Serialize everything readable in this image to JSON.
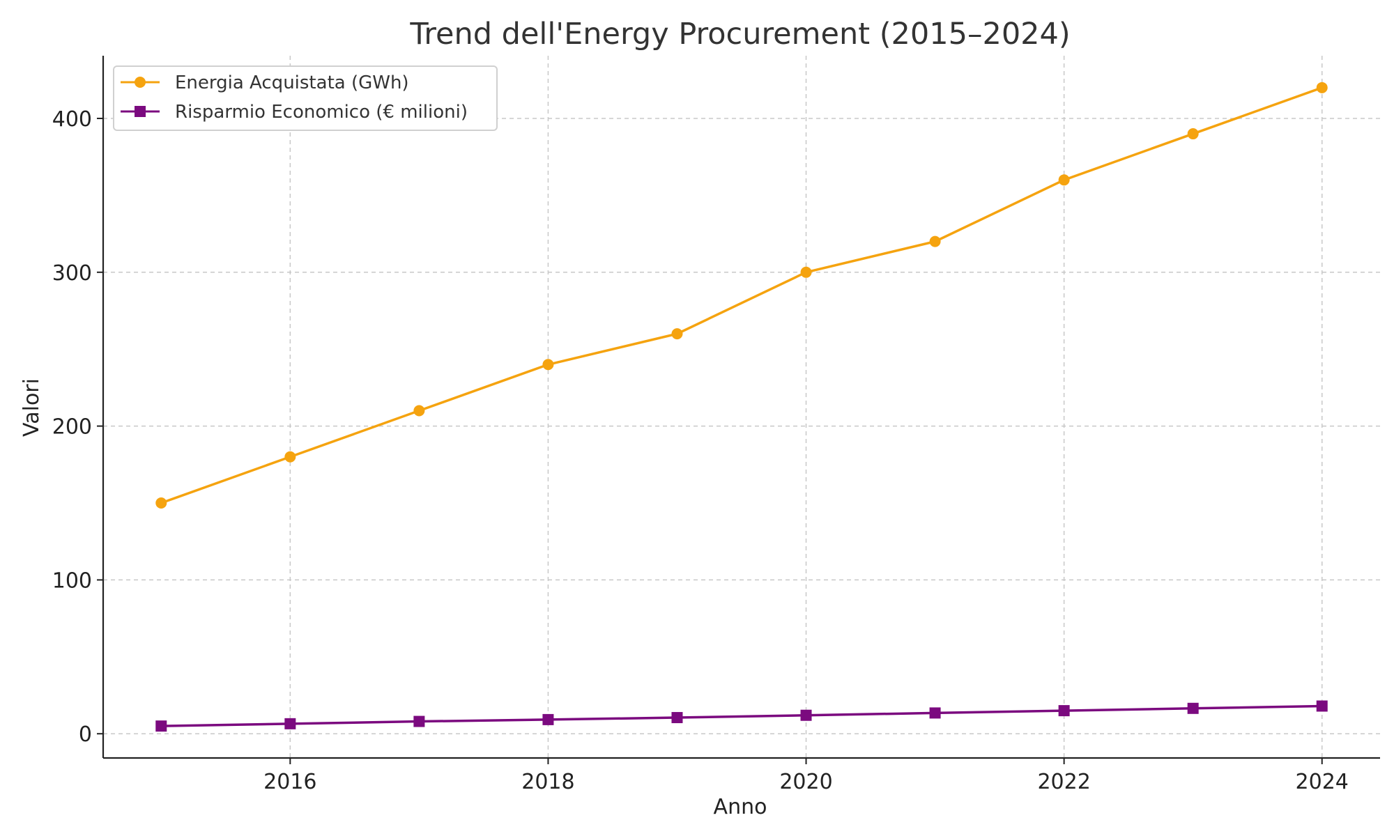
{
  "chart_data": {
    "type": "line",
    "title": "Trend dell'Energy Procurement (2015–2024)",
    "xlabel": "Anno",
    "ylabel": "Valori",
    "x": [
      2015,
      2016,
      2017,
      2018,
      2019,
      2020,
      2021,
      2022,
      2023,
      2024
    ],
    "xlim": [
      2014.55,
      2024.45
    ],
    "ylim": [
      -15.75,
      440.75
    ],
    "xticks": [
      2016,
      2018,
      2020,
      2022,
      2024
    ],
    "yticks": [
      0,
      100,
      200,
      300,
      400
    ],
    "grid": true,
    "legend_position": "top-left",
    "series": [
      {
        "name": "Energia Acquistata (GWh)",
        "values": [
          150,
          180,
          210,
          240,
          260,
          300,
          320,
          360,
          390,
          420
        ],
        "color": "#f5a30f",
        "marker": "circle"
      },
      {
        "name": "Risparmio Economico (€ milioni)",
        "values": [
          5,
          6.5,
          8,
          9.2,
          10.5,
          12,
          13.5,
          15,
          16.5,
          18
        ],
        "color": "#7b0a7f",
        "marker": "square"
      }
    ]
  }
}
